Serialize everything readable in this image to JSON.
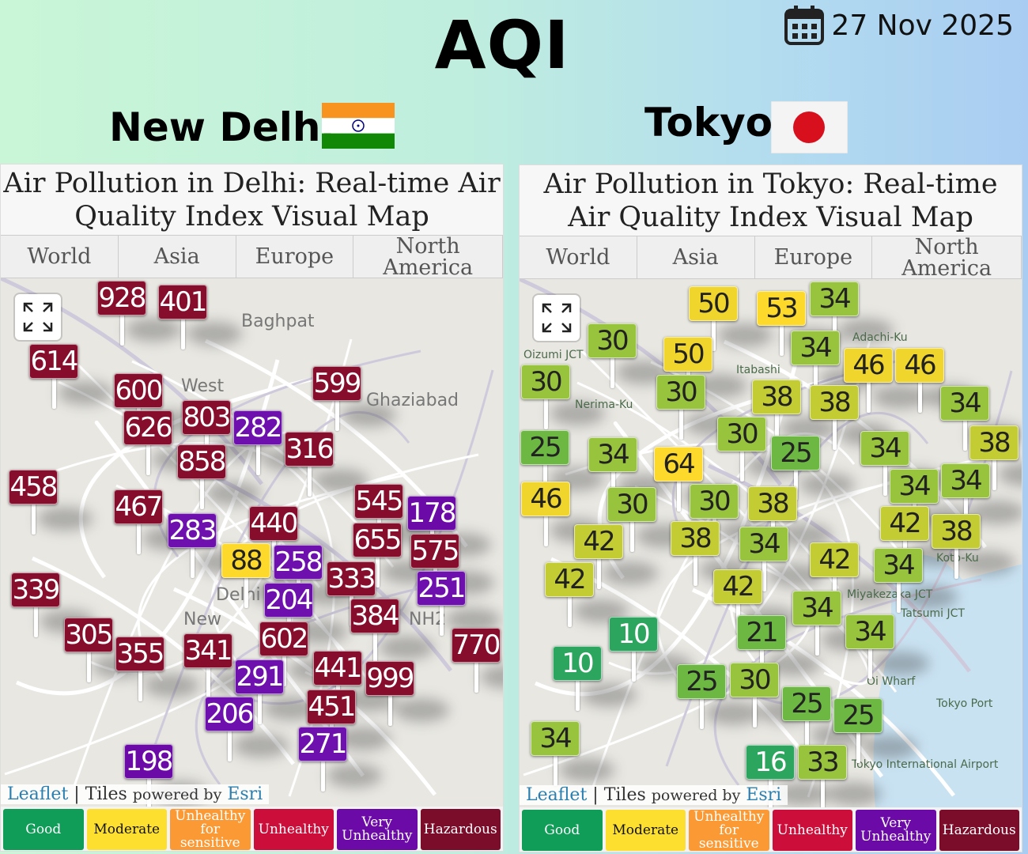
{
  "header": {
    "title": "AQI",
    "date": "27 Nov 2025",
    "icon": "calendar-icon"
  },
  "cities": [
    {
      "name": "New Delhi",
      "flag": "india-flag",
      "panel_title": "Air Pollution in Delhi: Real-time Air Quality Index Visual Map",
      "map_labels": [
        "Baghpat",
        "Ghaziabad",
        "West",
        "New",
        "Delhi",
        "NH2"
      ],
      "markers": [
        928,
        401,
        614,
        600,
        626,
        803,
        282,
        599,
        858,
        316,
        458,
        467,
        283,
        440,
        545,
        178,
        655,
        575,
        88,
        258,
        251,
        333,
        204,
        339,
        384,
        602,
        770,
        305,
        355,
        341,
        291,
        441,
        999,
        451,
        206,
        271,
        198
      ]
    },
    {
      "name": "Tokyo",
      "flag": "japan-flag",
      "panel_title": "Air Pollution in Tokyo: Real-time Air Quality Index Visual Map",
      "map_labels": [
        "Adachi-Ku",
        "Nerima-Ku",
        "Itabashi",
        "Oizumi JCT",
        "Miyakezaka JCT",
        "Tatsumi JCT",
        "Oi Wharf",
        "Tokyo Port",
        "Tokyo International Airport",
        "Koto-Ku"
      ],
      "markers": [
        50,
        53,
        34,
        30,
        50,
        34,
        46,
        46,
        30,
        30,
        38,
        38,
        34,
        30,
        38,
        25,
        34,
        64,
        25,
        34,
        34,
        34,
        46,
        30,
        30,
        42,
        38,
        42,
        38,
        38,
        34,
        42,
        42,
        34,
        42,
        34,
        10,
        10,
        21,
        34,
        25,
        30,
        25,
        25,
        34,
        16,
        33
      ]
    }
  ],
  "tabs": [
    "World",
    "Asia",
    "Europe",
    "North America"
  ],
  "attribution": {
    "leaflet": "Leaflet",
    "sep": "|",
    "tiles": "Tiles",
    "powered": "powered by",
    "esri": "Esri"
  },
  "legend": [
    {
      "label": "Good",
      "color": "#0f9d58"
    },
    {
      "label": "Moderate",
      "color": "#fde02f",
      "text": "#111"
    },
    {
      "label": "Unhealthy for sensitive",
      "color": "#fb9a35"
    },
    {
      "label": "Unhealthy",
      "color": "#cc0e3a"
    },
    {
      "label": "Very Unhealthy",
      "color": "#6b0aa6"
    },
    {
      "label": "Hazardous",
      "color": "#7b0c2a"
    }
  ]
}
